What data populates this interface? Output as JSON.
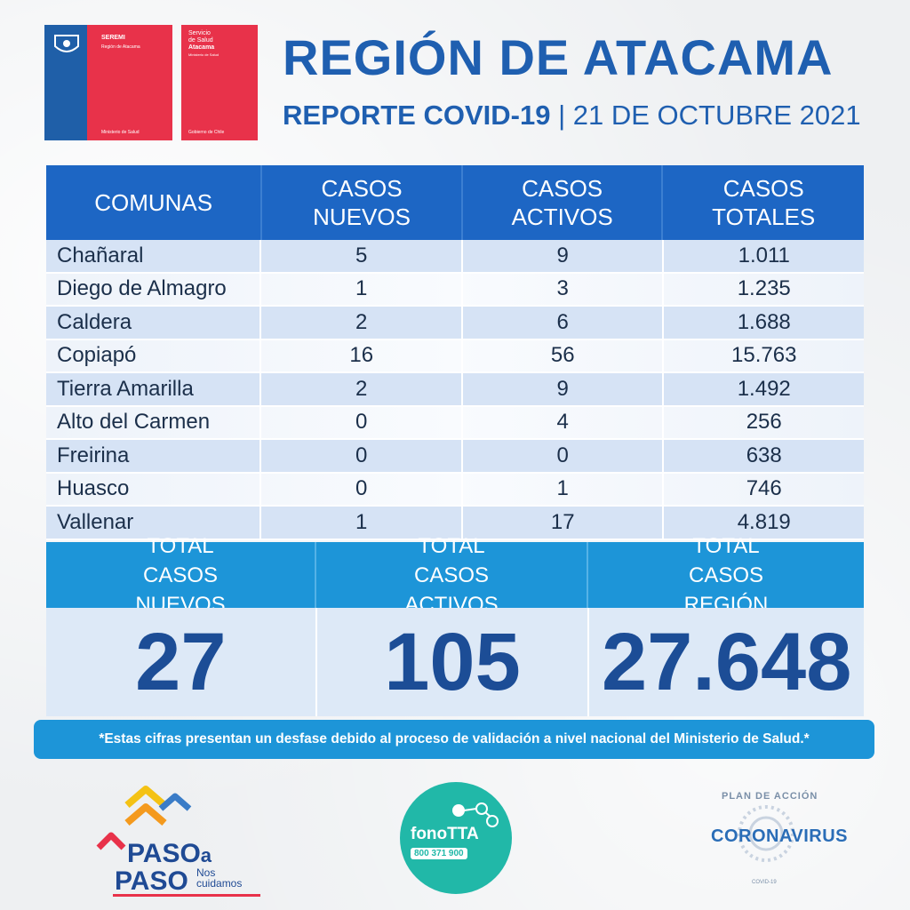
{
  "logos": {
    "seremi": {
      "line1": "SEREMI",
      "line2": "Región de Atacama",
      "footer": "Ministerio de Salud"
    },
    "servicio": {
      "line1": "Servicio",
      "line2": "de Salud",
      "line3": "Atacama",
      "line4": "Ministerio de Salud",
      "footer": "Gobierno de Chile"
    },
    "paso": {
      "paso_top": "PASO",
      "a": "a",
      "paso_bottom": "PASO",
      "nos": "Nos",
      "cuidamos": "cuidamos"
    },
    "fono": {
      "label": "fonoTTA",
      "phone": "800 371 900"
    },
    "corona": {
      "plan": "PLAN DE ACCIÓN",
      "word": "CORONAVIRUS",
      "covid": "COVID-19"
    }
  },
  "header": {
    "title": "REGIÓN DE ATACAMA",
    "subtitle_bold": "REPORTE COVID-19",
    "separator": " | ",
    "date": "21 DE OCTUBRE 2021"
  },
  "table": {
    "columns": [
      "COMUNAS",
      "CASOS NUEVOS",
      "CASOS ACTIVOS",
      "CASOS TOTALES"
    ],
    "rows": [
      {
        "comuna": "Chañaral",
        "nuevos": "5",
        "activos": "9",
        "totales": "1.011"
      },
      {
        "comuna": "Diego de Almagro",
        "nuevos": "1",
        "activos": "3",
        "totales": "1.235"
      },
      {
        "comuna": "Caldera",
        "nuevos": "2",
        "activos": "6",
        "totales": "1.688"
      },
      {
        "comuna": "Copiapó",
        "nuevos": "16",
        "activos": "56",
        "totales": "15.763"
      },
      {
        "comuna": "Tierra Amarilla",
        "nuevos": "2",
        "activos": "9",
        "totales": "1.492"
      },
      {
        "comuna": "Alto del Carmen",
        "nuevos": "0",
        "activos": "4",
        "totales": "256"
      },
      {
        "comuna": "Freirina",
        "nuevos": "0",
        "activos": "0",
        "totales": "638"
      },
      {
        "comuna": "Huasco",
        "nuevos": "0",
        "activos": "1",
        "totales": "746"
      },
      {
        "comuna": "Vallenar",
        "nuevos": "1",
        "activos": "17",
        "totales": "4.819"
      }
    ]
  },
  "totals": {
    "labels": [
      "TOTAL CASOS NUEVOS",
      "TOTAL CASOS ACTIVOS",
      "TOTAL CASOS REGIÓN"
    ],
    "values": [
      "27",
      "105",
      "27.648"
    ]
  },
  "note": "*Estas cifras presentan un desfase debido al proceso de validación a nivel nacional del Ministerio de Salud.*",
  "colors": {
    "title_blue": "#1f5fb0",
    "header_blue": "#1d66c4",
    "totals_blue": "#1d95d8",
    "gov_red": "#e8324a",
    "fono_teal": "#21b8a8"
  }
}
